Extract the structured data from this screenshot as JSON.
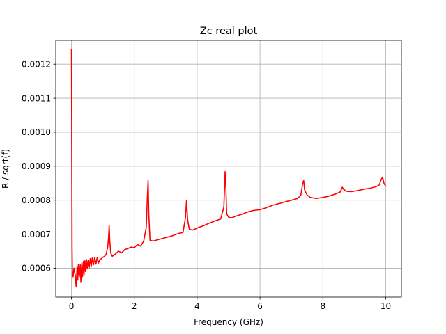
{
  "chart_data": {
    "type": "line",
    "title": "Zc real plot",
    "xlabel": "Frequency (GHz)",
    "ylabel": "R / sqrt(f)",
    "xlim": [
      -0.5,
      10.5
    ],
    "ylim": [
      0.000515,
      0.00127
    ],
    "xticks": [
      0,
      2,
      4,
      6,
      8,
      10
    ],
    "xtick_labels": [
      "0",
      "2",
      "4",
      "6",
      "8",
      "10"
    ],
    "yticks": [
      0.0006,
      0.0007,
      0.0008,
      0.0009,
      0.001,
      0.0011,
      0.0012
    ],
    "ytick_labels": [
      "0.0006",
      "0.0007",
      "0.0008",
      "0.0009",
      "0.0010",
      "0.0011",
      "0.0012"
    ],
    "grid": true,
    "series": [
      {
        "color": "#ff0000",
        "x": [
          0.0,
          0.01,
          0.02,
          0.03,
          0.05,
          0.08,
          0.12,
          0.15,
          0.18,
          0.2,
          0.22,
          0.25,
          0.28,
          0.3,
          0.33,
          0.35,
          0.38,
          0.4,
          0.43,
          0.45,
          0.48,
          0.5,
          0.53,
          0.56,
          0.6,
          0.63,
          0.66,
          0.7,
          0.74,
          0.78,
          0.82,
          0.86,
          0.9,
          0.95,
          1.0,
          1.05,
          1.1,
          1.15,
          1.18,
          1.2,
          1.22,
          1.25,
          1.3,
          1.4,
          1.5,
          1.6,
          1.7,
          1.8,
          1.9,
          2.0,
          2.1,
          2.2,
          2.3,
          2.38,
          2.42,
          2.44,
          2.46,
          2.5,
          2.6,
          2.8,
          3.0,
          3.2,
          3.4,
          3.55,
          3.63,
          3.66,
          3.7,
          3.75,
          3.85,
          4.0,
          4.2,
          4.4,
          4.6,
          4.75,
          4.85,
          4.89,
          4.91,
          4.94,
          5.0,
          5.1,
          5.2,
          5.4,
          5.6,
          5.8,
          6.0,
          6.2,
          6.4,
          6.6,
          6.8,
          7.0,
          7.2,
          7.3,
          7.36,
          7.39,
          7.42,
          7.5,
          7.6,
          7.8,
          8.0,
          8.2,
          8.4,
          8.55,
          8.62,
          8.66,
          8.75,
          8.9,
          9.1,
          9.3,
          9.5,
          9.7,
          9.8,
          9.85,
          9.9,
          9.95,
          10.0
        ],
        "y": [
          0.001243,
          0.00095,
          0.00066,
          0.000585,
          0.000575,
          0.0006,
          0.00058,
          0.000545,
          0.000605,
          0.000565,
          0.00061,
          0.000575,
          0.00061,
          0.00056,
          0.000615,
          0.000575,
          0.00062,
          0.00058,
          0.000622,
          0.00059,
          0.000625,
          0.000598,
          0.000622,
          0.0006,
          0.000628,
          0.000605,
          0.00063,
          0.00061,
          0.000632,
          0.000612,
          0.000632,
          0.000615,
          0.000625,
          0.000628,
          0.000632,
          0.000635,
          0.00064,
          0.00066,
          0.00069,
          0.000726,
          0.00068,
          0.000645,
          0.000635,
          0.000642,
          0.00065,
          0.000645,
          0.000655,
          0.000658,
          0.000662,
          0.00066,
          0.00067,
          0.000665,
          0.00068,
          0.00072,
          0.00082,
          0.000858,
          0.00076,
          0.000682,
          0.00068,
          0.000685,
          0.00069,
          0.000695,
          0.000702,
          0.000705,
          0.00075,
          0.000798,
          0.00074,
          0.000715,
          0.000712,
          0.000718,
          0.000725,
          0.000733,
          0.00074,
          0.000745,
          0.00078,
          0.000884,
          0.00085,
          0.00076,
          0.00075,
          0.000748,
          0.000752,
          0.000758,
          0.000765,
          0.00077,
          0.000772,
          0.000778,
          0.000785,
          0.00079,
          0.000795,
          0.0008,
          0.000805,
          0.000815,
          0.00085,
          0.000858,
          0.00083,
          0.000815,
          0.000808,
          0.000805,
          0.000808,
          0.000812,
          0.000818,
          0.000824,
          0.000838,
          0.000832,
          0.000826,
          0.000825,
          0.000828,
          0.000832,
          0.000835,
          0.00084,
          0.000845,
          0.00086,
          0.000868,
          0.000848,
          0.000842
        ]
      }
    ]
  }
}
